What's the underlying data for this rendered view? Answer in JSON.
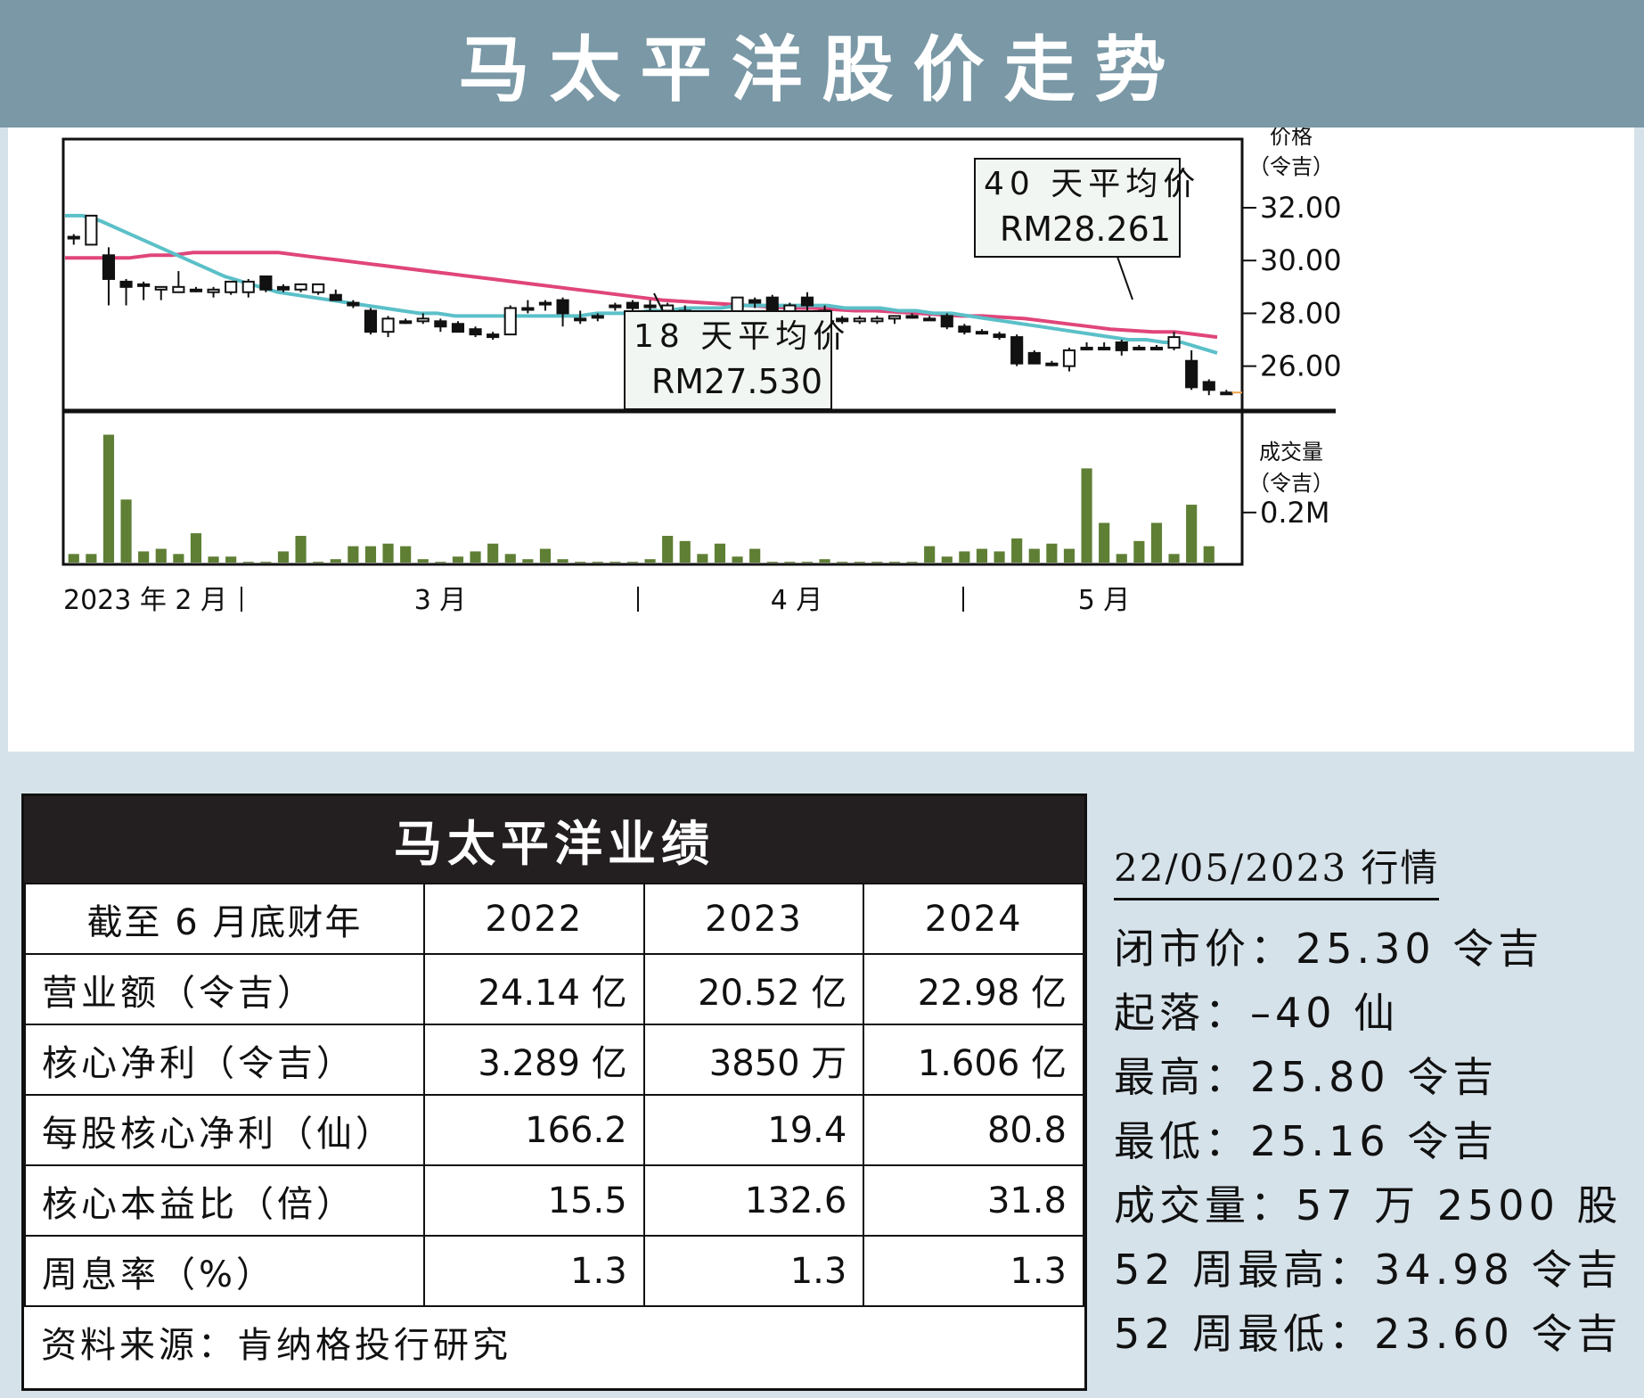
{
  "header": {
    "title": "马太平洋股价走势"
  },
  "chart_data": {
    "type": "candlestick",
    "price_axis": {
      "label_line1": "价格",
      "label_line2": "（令吉）",
      "ticks": [
        32,
        30,
        28,
        26
      ],
      "tick_labels": [
        "32.00",
        "30.00",
        "28.00",
        "26.00"
      ],
      "ylim": [
        24.3,
        34.6
      ]
    },
    "volume_axis": {
      "label_line1": "成交量",
      "label_line2": "（令吉）",
      "tick": 0.2,
      "tick_label": "0.2M",
      "ylim": [
        0,
        0.55
      ]
    },
    "x_labels": [
      "2023 年 2 月",
      "3 月",
      "4 月",
      "5 月"
    ],
    "ma18": {
      "label": "18 天平均价",
      "value_label": "RM27.530",
      "color": "#5bc0c8"
    },
    "ma40": {
      "label": "40 天平均价",
      "value_label": "RM28.261",
      "color": "#e0457b"
    },
    "candles": [
      {
        "o": 30.9,
        "h": 31.0,
        "l": 30.6,
        "c": 30.9
      },
      {
        "o": 30.6,
        "h": 31.7,
        "l": 30.6,
        "c": 31.7
      },
      {
        "o": 30.2,
        "h": 30.5,
        "l": 28.3,
        "c": 29.3
      },
      {
        "o": 29.2,
        "h": 29.3,
        "l": 28.3,
        "c": 29.0
      },
      {
        "o": 29.1,
        "h": 29.2,
        "l": 28.5,
        "c": 29.1
      },
      {
        "o": 28.9,
        "h": 29.0,
        "l": 28.5,
        "c": 29.0
      },
      {
        "o": 28.8,
        "h": 29.6,
        "l": 28.8,
        "c": 29.0
      },
      {
        "o": 28.9,
        "h": 29.0,
        "l": 28.8,
        "c": 28.9
      },
      {
        "o": 28.8,
        "h": 29.0,
        "l": 28.6,
        "c": 28.9
      },
      {
        "o": 28.8,
        "h": 29.2,
        "l": 28.7,
        "c": 29.2
      },
      {
        "o": 28.8,
        "h": 29.3,
        "l": 28.6,
        "c": 29.2
      },
      {
        "o": 29.4,
        "h": 29.4,
        "l": 28.8,
        "c": 28.9
      },
      {
        "o": 29.0,
        "h": 29.1,
        "l": 28.8,
        "c": 28.9
      },
      {
        "o": 28.9,
        "h": 29.1,
        "l": 28.8,
        "c": 29.1
      },
      {
        "o": 28.8,
        "h": 29.1,
        "l": 28.7,
        "c": 29.1
      },
      {
        "o": 28.7,
        "h": 28.9,
        "l": 28.5,
        "c": 28.5
      },
      {
        "o": 28.4,
        "h": 28.5,
        "l": 28.2,
        "c": 28.3
      },
      {
        "o": 28.1,
        "h": 28.2,
        "l": 27.2,
        "c": 27.3
      },
      {
        "o": 27.3,
        "h": 27.9,
        "l": 27.1,
        "c": 27.8
      },
      {
        "o": 27.7,
        "h": 27.8,
        "l": 27.6,
        "c": 27.7
      },
      {
        "o": 27.7,
        "h": 28.0,
        "l": 27.6,
        "c": 27.8
      },
      {
        "o": 27.7,
        "h": 27.8,
        "l": 27.3,
        "c": 27.5
      },
      {
        "o": 27.6,
        "h": 27.7,
        "l": 27.3,
        "c": 27.3
      },
      {
        "o": 27.4,
        "h": 27.5,
        "l": 27.1,
        "c": 27.2
      },
      {
        "o": 27.2,
        "h": 27.3,
        "l": 27.0,
        "c": 27.1
      },
      {
        "o": 27.2,
        "h": 28.3,
        "l": 27.2,
        "c": 28.2
      },
      {
        "o": 28.2,
        "h": 28.5,
        "l": 28.0,
        "c": 28.2
      },
      {
        "o": 28.4,
        "h": 28.5,
        "l": 28.1,
        "c": 28.4
      },
      {
        "o": 28.5,
        "h": 28.6,
        "l": 27.5,
        "c": 28.0
      },
      {
        "o": 27.8,
        "h": 28.1,
        "l": 27.6,
        "c": 27.8
      },
      {
        "o": 27.9,
        "h": 28.0,
        "l": 27.7,
        "c": 27.9
      },
      {
        "o": 28.3,
        "h": 28.4,
        "l": 28.1,
        "c": 28.3
      },
      {
        "o": 28.4,
        "h": 28.5,
        "l": 28.1,
        "c": 28.2
      },
      {
        "o": 28.3,
        "h": 28.5,
        "l": 28.1,
        "c": 28.3
      },
      {
        "o": 28.1,
        "h": 28.4,
        "l": 28.1,
        "c": 28.3
      },
      {
        "o": 28.1,
        "h": 28.3,
        "l": 28.0,
        "c": 28.1
      },
      {
        "o": 28.0,
        "h": 28.1,
        "l": 27.6,
        "c": 27.6
      },
      {
        "o": 27.9,
        "h": 28.0,
        "l": 27.5,
        "c": 27.6
      },
      {
        "o": 27.8,
        "h": 28.6,
        "l": 27.8,
        "c": 28.6
      },
      {
        "o": 28.5,
        "h": 28.6,
        "l": 28.2,
        "c": 28.4
      },
      {
        "o": 28.6,
        "h": 28.7,
        "l": 28.0,
        "c": 28.1
      },
      {
        "o": 27.9,
        "h": 28.4,
        "l": 27.8,
        "c": 28.3
      },
      {
        "o": 28.6,
        "h": 28.8,
        "l": 28.1,
        "c": 28.3
      },
      {
        "o": 28.1,
        "h": 28.3,
        "l": 27.5,
        "c": 27.6
      },
      {
        "o": 27.8,
        "h": 27.9,
        "l": 27.6,
        "c": 27.7
      },
      {
        "o": 27.7,
        "h": 27.9,
        "l": 27.6,
        "c": 27.8
      },
      {
        "o": 27.7,
        "h": 27.9,
        "l": 27.6,
        "c": 27.8
      },
      {
        "o": 27.8,
        "h": 27.9,
        "l": 27.6,
        "c": 27.9
      },
      {
        "o": 27.9,
        "h": 28.0,
        "l": 27.8,
        "c": 27.9
      },
      {
        "o": 27.8,
        "h": 27.9,
        "l": 27.8,
        "c": 27.8
      },
      {
        "o": 27.9,
        "h": 28.0,
        "l": 27.4,
        "c": 27.5
      },
      {
        "o": 27.5,
        "h": 27.6,
        "l": 27.2,
        "c": 27.3
      },
      {
        "o": 27.3,
        "h": 27.4,
        "l": 27.2,
        "c": 27.3
      },
      {
        "o": 27.2,
        "h": 27.3,
        "l": 27.0,
        "c": 27.1
      },
      {
        "o": 27.1,
        "h": 27.2,
        "l": 26.0,
        "c": 26.1
      },
      {
        "o": 26.5,
        "h": 26.6,
        "l": 26.1,
        "c": 26.1
      },
      {
        "o": 26.1,
        "h": 26.2,
        "l": 26.0,
        "c": 26.1
      },
      {
        "o": 26.0,
        "h": 26.7,
        "l": 25.8,
        "c": 26.6
      },
      {
        "o": 26.7,
        "h": 26.9,
        "l": 26.6,
        "c": 26.7
      },
      {
        "o": 26.7,
        "h": 26.9,
        "l": 26.6,
        "c": 26.7
      },
      {
        "o": 26.9,
        "h": 27.0,
        "l": 26.4,
        "c": 26.6
      },
      {
        "o": 26.7,
        "h": 26.8,
        "l": 26.6,
        "c": 26.7
      },
      {
        "o": 26.7,
        "h": 26.8,
        "l": 26.6,
        "c": 26.7
      },
      {
        "o": 26.7,
        "h": 27.3,
        "l": 26.6,
        "c": 27.1
      },
      {
        "o": 26.2,
        "h": 26.6,
        "l": 25.1,
        "c": 25.2
      },
      {
        "o": 25.4,
        "h": 25.5,
        "l": 24.9,
        "c": 25.1
      },
      {
        "o": 25.0,
        "h": 25.1,
        "l": 25.0,
        "c": 25.0
      }
    ],
    "volumes": [
      0.04,
      0.04,
      0.5,
      0.25,
      0.05,
      0.06,
      0.04,
      0.12,
      0.03,
      0.03,
      0.01,
      0.01,
      0.05,
      0.11,
      0.01,
      0.02,
      0.07,
      0.07,
      0.08,
      0.07,
      0.02,
      0.01,
      0.03,
      0.05,
      0.08,
      0.04,
      0.02,
      0.06,
      0.02,
      0.01,
      0.01,
      0.01,
      0.01,
      0.02,
      0.11,
      0.09,
      0.04,
      0.08,
      0.03,
      0.06,
      0.01,
      0.01,
      0.01,
      0.02,
      0.01,
      0.01,
      0.01,
      0.01,
      0.01,
      0.07,
      0.03,
      0.05,
      0.06,
      0.05,
      0.1,
      0.06,
      0.08,
      0.06,
      0.37,
      0.16,
      0.04,
      0.09,
      0.16,
      0.04,
      0.23,
      0.07
    ],
    "ma18_values": [
      31.7,
      31.7,
      31.5,
      31.2,
      30.9,
      30.6,
      30.3,
      30.0,
      29.7,
      29.4,
      29.2,
      29.0,
      28.8,
      28.7,
      28.6,
      28.5,
      28.4,
      28.3,
      28.2,
      28.1,
      28.0,
      28.0,
      27.9,
      27.9,
      27.9,
      27.9,
      27.9,
      27.9,
      27.9,
      27.9,
      28.0,
      28.0,
      28.0,
      28.1,
      28.1,
      28.2,
      28.2,
      28.2,
      28.3,
      28.3,
      28.3,
      28.3,
      28.3,
      28.3,
      28.2,
      28.2,
      28.2,
      28.1,
      28.1,
      28.0,
      28.0,
      27.9,
      27.8,
      27.7,
      27.6,
      27.5,
      27.4,
      27.3,
      27.2,
      27.1,
      27.0,
      27.0,
      26.9,
      26.9,
      26.7,
      26.5
    ],
    "ma40_values": [
      30.1,
      30.1,
      30.1,
      30.1,
      30.2,
      30.2,
      30.3,
      30.3,
      30.3,
      30.3,
      30.3,
      30.2,
      30.1,
      30.0,
      29.9,
      29.8,
      29.7,
      29.6,
      29.5,
      29.4,
      29.3,
      29.2,
      29.1,
      29.0,
      28.9,
      28.8,
      28.7,
      28.6,
      28.5,
      28.45,
      28.4,
      28.35,
      28.3,
      28.25,
      28.2,
      28.2,
      28.15,
      28.1,
      28.1,
      28.05,
      28.0,
      27.95,
      27.9,
      27.9,
      27.85,
      27.8,
      27.7,
      27.6,
      27.5,
      27.4,
      27.35,
      27.3,
      27.3,
      27.2,
      27.1
    ]
  },
  "finance": {
    "title": "马太平洋业绩",
    "headers": [
      "截至 6 月底财年",
      "2022",
      "2023",
      "2024"
    ],
    "rows": [
      {
        "label": "营业额（令吉）",
        "v": [
          "24.14 亿",
          "20.52 亿",
          "22.98 亿"
        ]
      },
      {
        "label": "核心净利（令吉）",
        "v": [
          "3.289 亿",
          "3850 万",
          "1.606 亿"
        ]
      },
      {
        "label": "每股核心净利（仙）",
        "v": [
          "166.2",
          "19.4",
          "80.8"
        ]
      },
      {
        "label": "核心本益比（倍）",
        "v": [
          "15.5",
          "132.6",
          "31.8"
        ]
      },
      {
        "label": "周息率（%）",
        "v": [
          "1.3",
          "1.3",
          "1.3"
        ]
      }
    ],
    "source": "资料来源：肯纳格投行研究"
  },
  "market": {
    "date_title": "22/05/2023 行情",
    "close": "闭市价：25.30 令吉",
    "change": "起落：–40 仙",
    "high": "最高：25.80 令吉",
    "low": "最低：25.16 令吉",
    "volume": "成交量：57 万 2500 股",
    "wk52_high": "52 周最高：34.98 令吉",
    "wk52_low": "52 周最低：23.60 令吉"
  }
}
